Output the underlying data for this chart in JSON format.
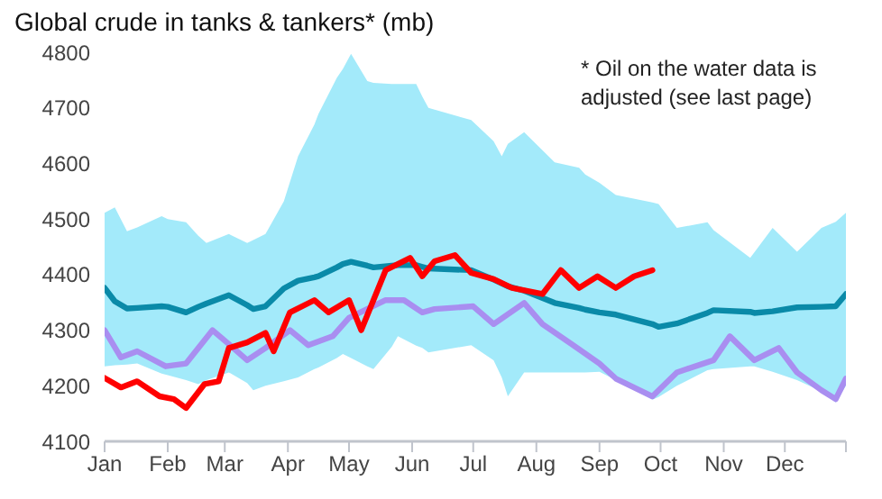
{
  "chart_data": {
    "type": "line",
    "title": "Global crude in tanks & tankers* (mb)",
    "annotations": [
      "* Oil on the water data is adjusted (see last page)"
    ],
    "xlim": [
      "--01-01",
      "--12-31"
    ],
    "xticks": [
      {
        "value": "--01-01",
        "label": "Jan"
      },
      {
        "value": "--02-01",
        "label": "Feb"
      },
      {
        "value": "--03-01",
        "label": "Mar"
      },
      {
        "value": "--04-01",
        "label": "Apr"
      },
      {
        "value": "--05-01",
        "label": "May"
      },
      {
        "value": "--06-01",
        "label": "Jun"
      },
      {
        "value": "--07-01",
        "label": "Jul"
      },
      {
        "value": "--08-01",
        "label": "Aug"
      },
      {
        "value": "--09-01",
        "label": "Sep"
      },
      {
        "value": "--10-01",
        "label": "Oct"
      },
      {
        "value": "--11-01",
        "label": "Nov"
      },
      {
        "value": "--12-01",
        "label": "Dec"
      },
      {
        "value": "--12-31",
        "label": null
      }
    ],
    "ylim": [
      4100,
      4800
    ],
    "yticks": [
      4100,
      4200,
      4300,
      4400,
      4500,
      4600,
      4700,
      4800
    ],
    "grid": false,
    "legend": false,
    "marker": "none",
    "line_style": "solid",
    "series": [
      {
        "color": "#0a8aa8",
        "x": [
          "--01-01",
          "--01-06",
          "--01-12",
          "--01-17",
          "--01-29",
          "--02-01",
          "--02-10",
          "--02-16",
          "--02-20",
          "--03-03",
          "--03-12",
          "--03-15",
          "--03-21",
          "--03-30",
          "--04-06",
          "--04-14",
          "--04-16",
          "--04-25",
          "--04-28",
          "--05-02",
          "--05-10",
          "--05-13",
          "--05-22",
          "--05-25",
          "--06-03",
          "--06-06",
          "--06-09",
          "--06-30",
          "--07-11",
          "--07-15",
          "--07-18",
          "--07-26",
          "--08-10",
          "--08-22",
          "--08-25",
          "--09-01",
          "--09-09",
          "--09-27",
          "--09-30",
          "--10-09",
          "--10-24",
          "--10-27",
          "--11-14",
          "--11-16",
          "--11-25",
          "--12-07",
          "--12-19",
          "--12-26",
          "--12-31"
        ],
        "values": [
          4376,
          4352,
          4339,
          4340,
          4343,
          4342,
          4332,
          4342,
          4348,
          4363,
          4345,
          4338,
          4343,
          4375,
          4389,
          4395,
          4397,
          4413,
          4419,
          4423,
          4416,
          4413,
          4416,
          4417,
          4417,
          4414,
          4411,
          4408,
          4391,
          4384,
          4379,
          4371,
          4349,
          4340,
          4337,
          4332,
          4328,
          4311,
          4306,
          4312,
          4331,
          4336,
          4333,
          4331,
          4334,
          4341,
          4342,
          4343,
          4365
        ],
        "lower": [
          4235,
          4237,
          4238,
          4240,
          4222,
          4219,
          4210,
          4203,
          4210,
          4224,
          4205,
          4192,
          4200,
          4208,
          4215,
          4230,
          4233,
          4250,
          4257,
          4250,
          4235,
          4230,
          4270,
          4289,
          4272,
          4268,
          4260,
          4273,
          4246,
          4215,
          4181,
          4224,
          4224,
          4224,
          4224,
          4225,
          4210,
          4175,
          4180,
          4200,
          4228,
          4230,
          4235,
          4235,
          4225,
          4210,
          4190,
          4170,
          4200
        ],
        "upper": [
          4511,
          4521,
          4478,
          4485,
          4505,
          4500,
          4494,
          4470,
          4457,
          4473,
          4457,
          4462,
          4473,
          4532,
          4613,
          4670,
          4689,
          4754,
          4770,
          4797,
          4748,
          4745,
          4743,
          4743,
          4743,
          4720,
          4700,
          4678,
          4640,
          4613,
          4635,
          4656,
          4602,
          4592,
          4580,
          4565,
          4543,
          4530,
          4527,
          4484,
          4494,
          4480,
          4430,
          4440,
          4484,
          4441,
          4484,
          4495,
          4511
        ]
      },
      {
        "color": "#a98ef0",
        "x": [
          "--01-01",
          "--01-09",
          "--01-17",
          "--01-31",
          "--02-10",
          "--02-23",
          "--03-02",
          "--03-12",
          "--03-21",
          "--04-02",
          "--04-11",
          "--04-23",
          "--05-01",
          "--05-19",
          "--05-28",
          "--06-06",
          "--06-12",
          "--07-01",
          "--07-11",
          "--07-26",
          "--08-04",
          "--08-19",
          "--09-01",
          "--09-09",
          "--09-27",
          "--10-09",
          "--10-27",
          "--11-04",
          "--11-16",
          "--11-28",
          "--12-07",
          "--12-19",
          "--12-26",
          "--12-31"
        ],
        "values": [
          4300,
          4251,
          4262,
          4235,
          4240,
          4300,
          4278,
          4246,
          4268,
          4300,
          4273,
          4289,
          4322,
          4354,
          4354,
          4332,
          4338,
          4343,
          4311,
          4349,
          4311,
          4273,
          4240,
          4213,
          4181,
          4224,
          4246,
          4289,
          4246,
          4268,
          4224,
          4192,
          4176,
          4213
        ]
      },
      {
        "color": "#ff0000",
        "x": [
          "--01-01",
          "--01-09",
          "--01-17",
          "--01-28",
          "--02-04",
          "--02-10",
          "--02-19",
          "--02-26",
          "--03-03",
          "--03-12",
          "--03-21",
          "--03-25",
          "--04-02",
          "--04-14",
          "--04-21",
          "--05-01",
          "--05-07",
          "--05-13",
          "--05-19",
          "--05-31",
          "--06-06",
          "--06-12",
          "--06-22",
          "--06-30",
          "--07-11",
          "--07-20",
          "--08-04",
          "--08-13",
          "--08-22",
          "--08-31",
          "--09-09",
          "--09-18",
          "--09-27"
        ],
        "values": [
          4214,
          4197,
          4208,
          4181,
          4176,
          4160,
          4203,
          4208,
          4268,
          4278,
          4295,
          4262,
          4332,
          4354,
          4332,
          4354,
          4300,
          4354,
          4408,
          4430,
          4397,
          4424,
          4435,
          4403,
          4392,
          4376,
          4365,
          4408,
          4376,
          4397,
          4376,
          4397,
          4408
        ]
      }
    ]
  }
}
